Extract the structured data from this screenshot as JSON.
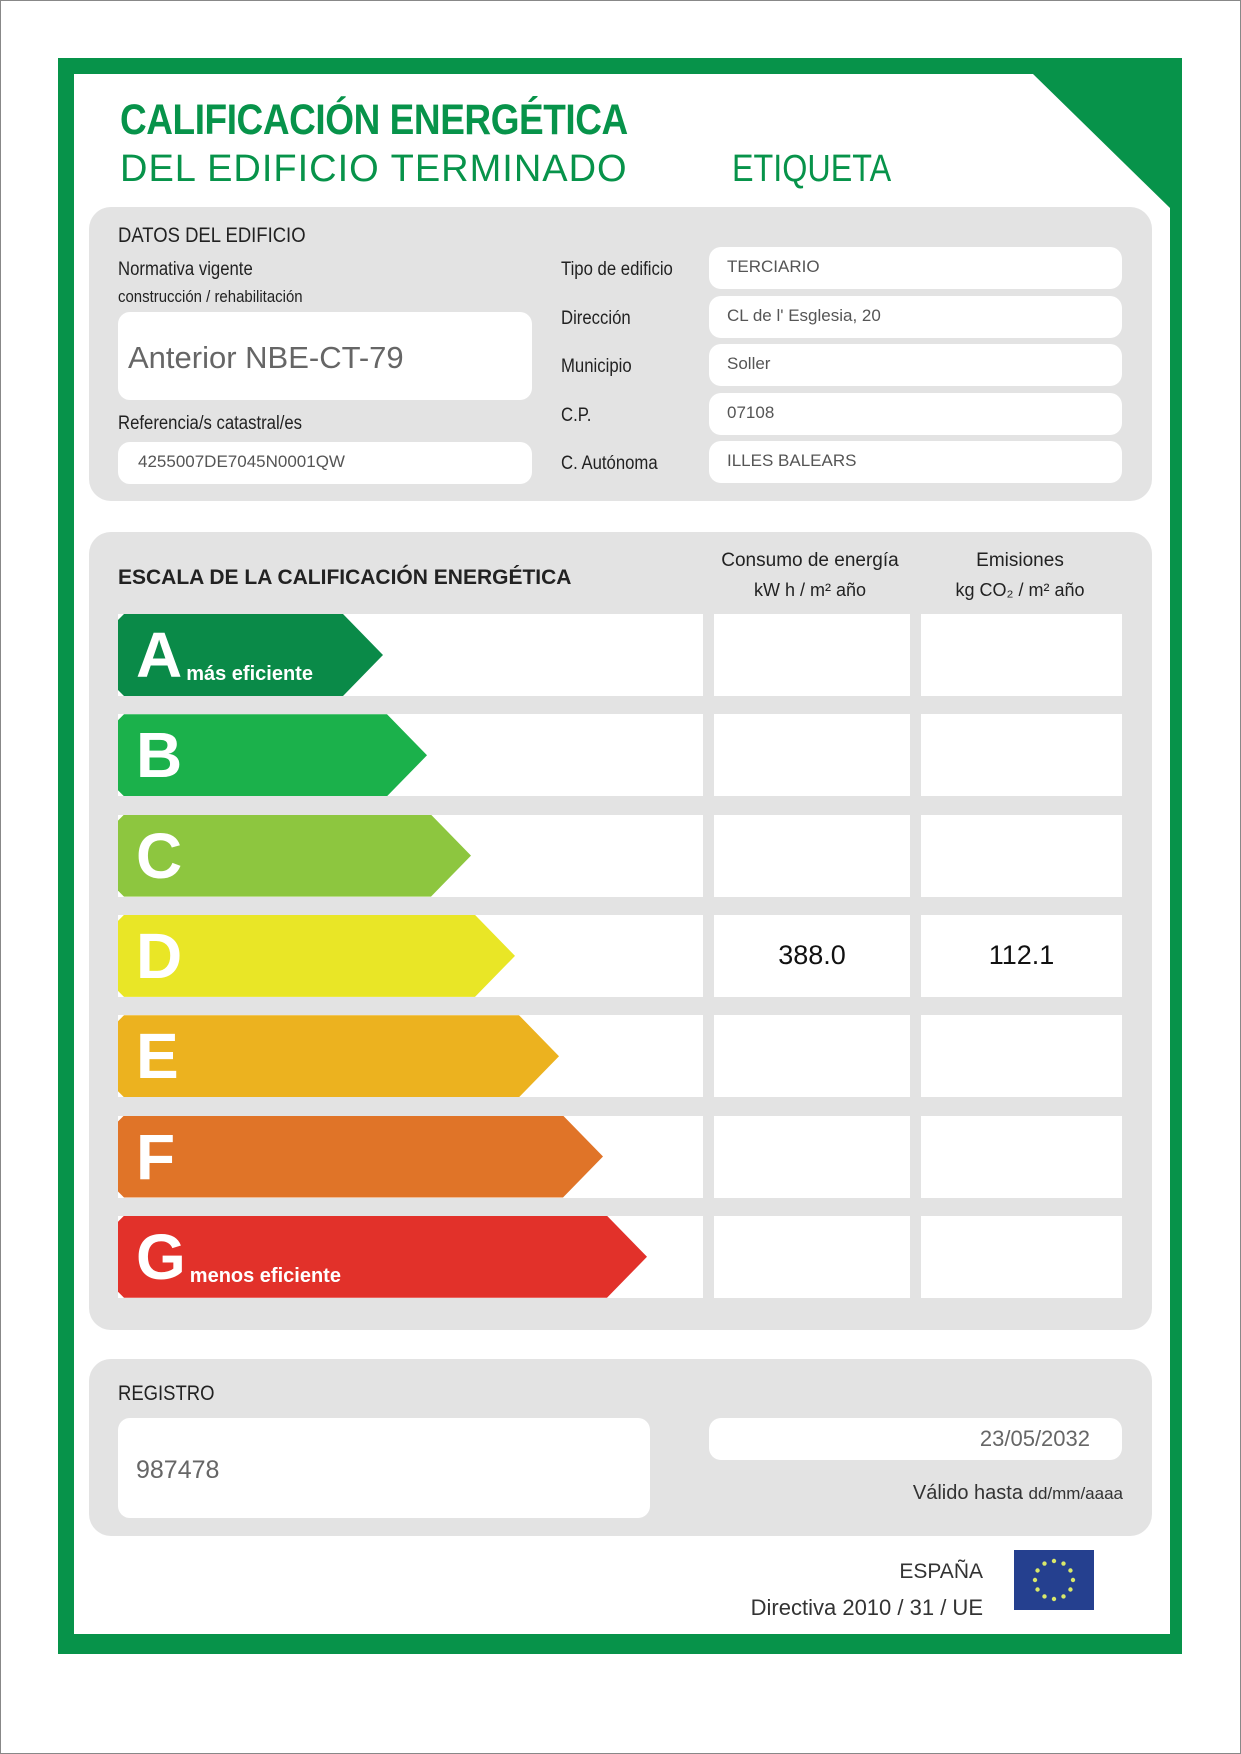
{
  "header": {
    "title_line1": "CALIFICACIÓN ENERGÉTICA",
    "title_line2": "DEL EDIFICIO TERMINADO",
    "label": "ETIQUETA"
  },
  "datos": {
    "title": "DATOS DEL EDIFICIO",
    "normativa_label1": "Normativa vigente",
    "normativa_label2": "construcción / rehabilitación",
    "normativa_value": "Anterior NBE-CT-79",
    "referencia_label": "Referencia/s catastral/es",
    "referencia_value": "4255007DE7045N0001QW",
    "fields": [
      {
        "label": "Tipo de edificio",
        "value": "TERCIARIO"
      },
      {
        "label": "Dirección",
        "value": "CL de l' Esglesia, 20"
      },
      {
        "label": "Municipio",
        "value": "Soller"
      },
      {
        "label": "C.P.",
        "value": "07108"
      },
      {
        "label": "C. Autónoma",
        "value": "ILLES BALEARS"
      }
    ]
  },
  "escala": {
    "title": "ESCALA DE LA CALIFICACIÓN ENERGÉTICA",
    "col1_line1": "Consumo de energía",
    "col1_line2": "kW h  / m² año",
    "col2_line1": "Emisiones",
    "col2_line2": "kg CO₂  / m² año",
    "ratings": [
      {
        "letter": "A",
        "sub": "más eficiente",
        "color": "#0a8a48",
        "consumo": "",
        "emisiones": ""
      },
      {
        "letter": "B",
        "sub": "",
        "color": "#1bb14b",
        "consumo": "",
        "emisiones": ""
      },
      {
        "letter": "C",
        "sub": "",
        "color": "#8dc63f",
        "consumo": "",
        "emisiones": ""
      },
      {
        "letter": "D",
        "sub": "",
        "color": "#e9e626",
        "consumo": "388.0",
        "emisiones": "112.1"
      },
      {
        "letter": "E",
        "sub": "",
        "color": "#ecb21f",
        "consumo": "",
        "emisiones": ""
      },
      {
        "letter": "F",
        "sub": "",
        "color": "#e07428",
        "consumo": "",
        "emisiones": ""
      },
      {
        "letter": "G",
        "sub": "menos eficiente",
        "color": "#e2312a",
        "consumo": "",
        "emisiones": ""
      }
    ]
  },
  "registro": {
    "title": "REGISTRO",
    "value": "987478",
    "valid_date": "23/05/2032",
    "valid_label": "Válido hasta",
    "valid_format": "dd/mm/aaaa"
  },
  "footer": {
    "country": "ESPAÑA",
    "directive": "Directiva 2010 / 31 / UE",
    "flag_icon": "eu-flag-icon"
  },
  "colors": {
    "brand_green": "#07934a",
    "panel_gray": "#e3e3e3"
  }
}
